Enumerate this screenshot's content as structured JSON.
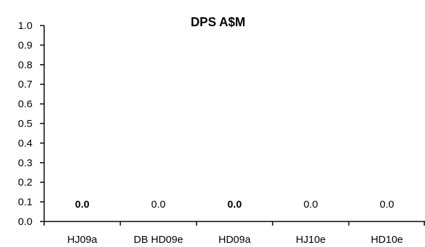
{
  "chart_data": {
    "type": "bar",
    "title": "DPS A$M",
    "xlabel": "",
    "ylabel": "",
    "categories": [
      "HJ09a",
      "DB HD09e",
      "HD09a",
      "HJ10e",
      "HD10e"
    ],
    "values": [
      0.0,
      0.0,
      0.0,
      0.0,
      0.0
    ],
    "data_labels": [
      "0.0",
      "0.0",
      "0.0",
      "0.0",
      "0.0"
    ],
    "data_label_bold": [
      true,
      false,
      true,
      false,
      false
    ],
    "ylim": [
      0,
      1.0
    ],
    "yticks": [
      "0.0",
      "0.1",
      "0.2",
      "0.3",
      "0.4",
      "0.5",
      "0.6",
      "0.7",
      "0.8",
      "0.9",
      "1.0"
    ],
    "grid": false,
    "legend": "none"
  }
}
